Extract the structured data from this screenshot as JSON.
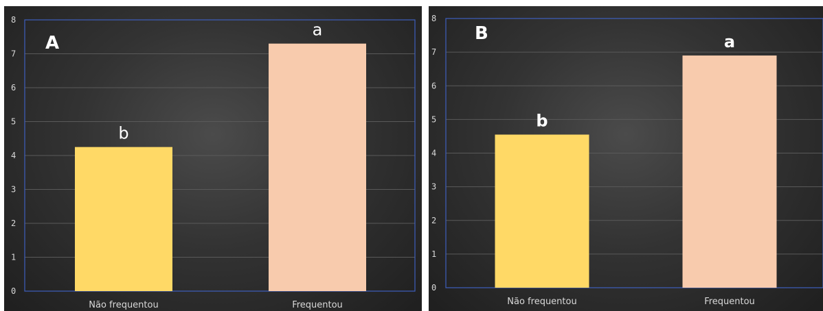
{
  "chart_data": [
    {
      "type": "bar",
      "panel_label": "A",
      "categories": [
        "Não frequentou",
        "Frequentou"
      ],
      "values": [
        4.25,
        7.3
      ],
      "bar_annotations": [
        "b",
        "a"
      ],
      "colors": [
        "#ffd966",
        "#f8cbad"
      ],
      "ylim": [
        0,
        8
      ],
      "yticks": [
        "0",
        "1",
        "2",
        "3",
        "4",
        "5",
        "6",
        "7",
        "8"
      ],
      "grid": true,
      "title": "",
      "xlabel": "",
      "ylabel": ""
    },
    {
      "type": "bar",
      "panel_label": "B",
      "categories": [
        "Não frequentou",
        "Frequentou"
      ],
      "values": [
        4.55,
        6.9
      ],
      "bar_annotations": [
        "b",
        "a"
      ],
      "colors": [
        "#ffd966",
        "#f8cbad"
      ],
      "ylim": [
        0,
        8
      ],
      "yticks": [
        "0",
        "1",
        "2",
        "3",
        "4",
        "5",
        "6",
        "7",
        "8"
      ],
      "grid": true,
      "title": "",
      "xlabel": "",
      "ylabel": ""
    }
  ]
}
